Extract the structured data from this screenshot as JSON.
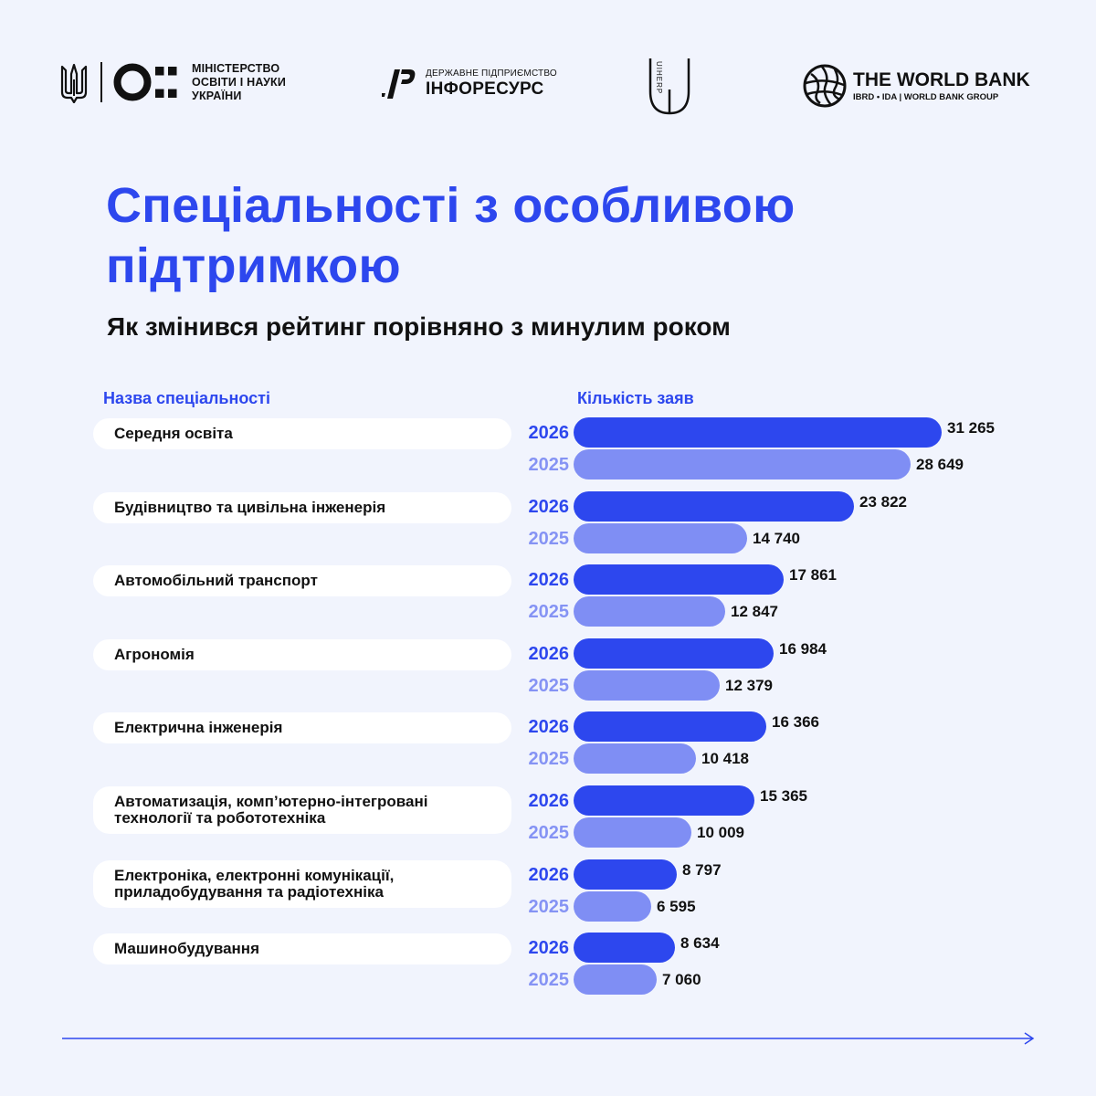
{
  "header": {
    "ministry_lines": [
      "МІНІСТЕРСТВО",
      "ОСВІТИ І НАУКИ",
      "УКРАЇНИ"
    ],
    "inforesurs_sub": "ДЕРЖАВНЕ ПІДПРИЄМСТВО",
    "inforesurs_main": "ІНФОРЕСУРС",
    "uiherp_label": "UIHERP",
    "worldbank_main": "THE WORLD BANK",
    "worldbank_sub": "IBRD • IDA | WORLD BANK GROUP"
  },
  "title_lines": [
    "Спеціальності з особливою",
    "підтримкою"
  ],
  "subtitle": "Як змінився рейтинг порівняно з минулим роком",
  "columns": {
    "name": "Назва спеціальності",
    "count": "Кількість заяв"
  },
  "colors": {
    "accent": "#2d47ee",
    "light_bar": "#7f8ef4",
    "light_year": "#8593f4",
    "background": "#f1f4fd"
  },
  "chart_data": {
    "type": "bar",
    "orientation": "horizontal",
    "series": [
      {
        "name": "2026",
        "values": [
          31265,
          23822,
          17861,
          16984,
          16366,
          15365,
          8797,
          8634
        ],
        "labels": [
          "31 265",
          "23 822",
          "17 861",
          "16 984",
          "16 366",
          "15 365",
          "8 797",
          "8 634"
        ]
      },
      {
        "name": "2025",
        "values": [
          28649,
          14740,
          12847,
          12379,
          10418,
          10009,
          6595,
          7060
        ],
        "labels": [
          "28 649",
          "14 740",
          "12 847",
          "12 379",
          "10 418",
          "10 009",
          "6 595",
          "7 060"
        ]
      }
    ],
    "categories": [
      [
        "Середня освіта"
      ],
      [
        "Будівництво та цивільна інженерія"
      ],
      [
        "Автомобільний транспорт"
      ],
      [
        "Агрономія"
      ],
      [
        "Електрична інженерія"
      ],
      [
        "Автоматизація, комп’ютерно-інтегровані",
        "технології та робототехніка"
      ],
      [
        "Електроніка, електронні комунікації,",
        "приладобудування та радіотехніка"
      ],
      [
        "Машинобудування"
      ]
    ],
    "xlim": [
      0,
      31265
    ]
  }
}
